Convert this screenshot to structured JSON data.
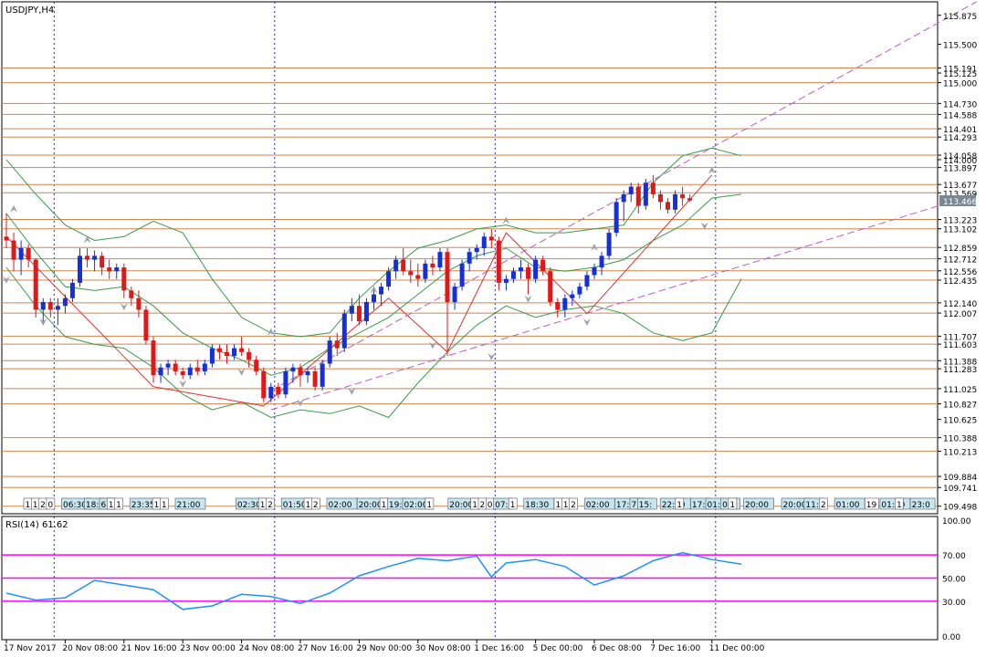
{
  "chart_data": {
    "type": "candlestick",
    "title": "USDJPY,H4",
    "symbol": "USDJPY",
    "timeframe": "H4",
    "colors": {
      "bull": "#1530d8",
      "bear": "#e01818",
      "level": "#d0854a",
      "bands": "#3a9a4a",
      "trendline": "#b85cc8",
      "zigzag": "#e03030",
      "rsi": "#1e90ff",
      "rsi_level": "#ff00ff",
      "grid_vline": "#1a2ad8",
      "current_price_bg": "#7a8896"
    },
    "price_axis": {
      "ylim": [
        109.4,
        116.05
      ],
      "labels": [
        "115.875",
        "115.500",
        "115.191",
        "115.125",
        "115.000",
        "114.730",
        "114.588",
        "114.401",
        "114.293",
        "114.058",
        "114.000",
        "113.897",
        "113.677",
        "113.569",
        "113.223",
        "113.102",
        "112.859",
        "112.712",
        "112.556",
        "112.435",
        "112.140",
        "112.007",
        "111.707",
        "111.603",
        "111.388",
        "111.283",
        "111.025",
        "110.827",
        "110.625",
        "110.388",
        "110.213",
        "109.884",
        "109.741",
        "109.498"
      ],
      "current_price": "113.466"
    },
    "horizontal_levels": [
      115.191,
      115.0,
      114.73,
      114.588,
      114.401,
      114.293,
      114.058,
      113.897,
      113.677,
      113.569,
      113.223,
      113.102,
      112.859,
      112.712,
      112.556,
      112.435,
      112.14,
      112.007,
      111.707,
      111.603,
      111.388,
      111.283,
      111.025,
      110.827,
      110.388,
      110.213,
      109.884,
      109.741,
      109.498
    ],
    "x_axis": {
      "labels": [
        "17 Nov 2017",
        "20 Nov 08:00",
        "21 Nov 16:00",
        "23 Nov 00:00",
        "24 Nov 08:00",
        "27 Nov 16:00",
        "29 Nov 00:00",
        "30 Nov 08:00",
        "1 Dec 16:00",
        "5 Dec 00:00",
        "6 Dec 08:00",
        "7 Dec 16:00",
        "11 Dec 00:00"
      ],
      "label_index": [
        0,
        8,
        16,
        24,
        32,
        40,
        48,
        56,
        64,
        72,
        80,
        88,
        96
      ]
    },
    "session_separators_index": [
      6.5,
      36.5,
      66.5,
      96.5
    ],
    "candles": [
      [
        113.0,
        113.3,
        112.85,
        112.95
      ],
      [
        112.95,
        113.05,
        112.55,
        112.7
      ],
      [
        112.7,
        112.95,
        112.5,
        112.85
      ],
      [
        112.85,
        112.9,
        112.6,
        112.7
      ],
      [
        112.7,
        112.72,
        111.95,
        112.05
      ],
      [
        112.05,
        112.2,
        111.9,
        112.15
      ],
      [
        112.15,
        112.2,
        111.95,
        112.05
      ],
      [
        112.05,
        112.2,
        111.85,
        112.1
      ],
      [
        112.1,
        112.25,
        112.0,
        112.2
      ],
      [
        112.2,
        112.45,
        112.15,
        112.4
      ],
      [
        112.4,
        112.85,
        112.35,
        112.75
      ],
      [
        112.75,
        112.85,
        112.6,
        112.7
      ],
      [
        112.7,
        112.82,
        112.55,
        112.75
      ],
      [
        112.75,
        112.8,
        112.5,
        112.6
      ],
      [
        112.6,
        112.7,
        112.45,
        112.55
      ],
      [
        112.55,
        112.65,
        112.45,
        112.6
      ],
      [
        112.6,
        112.65,
        112.2,
        112.3
      ],
      [
        112.3,
        112.35,
        112.1,
        112.2
      ],
      [
        112.2,
        112.3,
        111.95,
        112.05
      ],
      [
        112.05,
        112.1,
        111.6,
        111.65
      ],
      [
        111.65,
        111.7,
        111.1,
        111.2
      ],
      [
        111.2,
        111.35,
        111.1,
        111.3
      ],
      [
        111.3,
        111.4,
        111.2,
        111.35
      ],
      [
        111.35,
        111.4,
        111.2,
        111.25
      ],
      [
        111.25,
        111.3,
        111.15,
        111.2
      ],
      [
        111.2,
        111.35,
        111.15,
        111.3
      ],
      [
        111.3,
        111.4,
        111.2,
        111.25
      ],
      [
        111.25,
        111.4,
        111.2,
        111.35
      ],
      [
        111.35,
        111.6,
        111.3,
        111.55
      ],
      [
        111.55,
        111.6,
        111.4,
        111.5
      ],
      [
        111.5,
        111.6,
        111.35,
        111.45
      ],
      [
        111.45,
        111.6,
        111.4,
        111.55
      ],
      [
        111.55,
        111.7,
        111.45,
        111.5
      ],
      [
        111.5,
        111.55,
        111.3,
        111.4
      ],
      [
        111.4,
        111.45,
        111.2,
        111.25
      ],
      [
        111.25,
        111.3,
        110.85,
        110.9
      ],
      [
        110.9,
        111.1,
        110.85,
        111.05
      ],
      [
        111.05,
        111.1,
        110.9,
        110.95
      ],
      [
        110.95,
        111.3,
        110.9,
        111.25
      ],
      [
        111.25,
        111.35,
        111.1,
        111.3
      ],
      [
        111.3,
        111.35,
        111.05,
        111.2
      ],
      [
        111.2,
        111.3,
        111.1,
        111.25
      ],
      [
        111.25,
        111.3,
        111.0,
        111.05
      ],
      [
        111.05,
        111.4,
        111.0,
        111.35
      ],
      [
        111.35,
        111.7,
        111.3,
        111.65
      ],
      [
        111.65,
        111.75,
        111.45,
        111.55
      ],
      [
        111.55,
        112.05,
        111.5,
        112.0
      ],
      [
        112.0,
        112.2,
        111.9,
        112.1
      ],
      [
        112.1,
        112.25,
        111.85,
        111.9
      ],
      [
        111.9,
        112.2,
        111.85,
        112.15
      ],
      [
        112.15,
        112.3,
        112.05,
        112.25
      ],
      [
        112.25,
        112.4,
        112.1,
        112.35
      ],
      [
        112.35,
        112.6,
        112.3,
        112.55
      ],
      [
        112.55,
        112.75,
        112.45,
        112.7
      ],
      [
        112.7,
        112.85,
        112.5,
        112.55
      ],
      [
        112.55,
        112.7,
        112.4,
        112.5
      ],
      [
        112.5,
        112.65,
        112.35,
        112.45
      ],
      [
        112.45,
        112.7,
        112.4,
        112.65
      ],
      [
        112.65,
        112.75,
        112.5,
        112.6
      ],
      [
        112.6,
        112.85,
        112.55,
        112.8
      ],
      [
        112.8,
        112.85,
        111.45,
        112.15
      ],
      [
        112.15,
        112.4,
        112.05,
        112.35
      ],
      [
        112.35,
        112.7,
        112.3,
        112.65
      ],
      [
        112.65,
        112.85,
        112.55,
        112.8
      ],
      [
        112.8,
        112.9,
        112.7,
        112.85
      ],
      [
        112.85,
        113.05,
        112.75,
        113.0
      ],
      [
        113.0,
        113.1,
        112.85,
        112.95
      ],
      [
        112.95,
        113.0,
        112.3,
        112.4
      ],
      [
        112.4,
        112.5,
        112.3,
        112.45
      ],
      [
        112.45,
        112.6,
        112.4,
        112.55
      ],
      [
        112.55,
        112.7,
        112.45,
        112.6
      ],
      [
        112.6,
        112.65,
        112.25,
        112.45
      ],
      [
        112.45,
        112.75,
        112.4,
        112.7
      ],
      [
        112.7,
        112.75,
        112.5,
        112.55
      ],
      [
        112.55,
        112.6,
        112.1,
        112.15
      ],
      [
        112.15,
        112.2,
        111.95,
        112.05
      ],
      [
        112.05,
        112.25,
        111.95,
        112.2
      ],
      [
        112.2,
        112.3,
        112.1,
        112.25
      ],
      [
        112.25,
        112.4,
        112.2,
        112.35
      ],
      [
        112.35,
        112.55,
        112.3,
        112.5
      ],
      [
        112.5,
        112.65,
        112.45,
        112.6
      ],
      [
        112.6,
        112.8,
        112.5,
        112.75
      ],
      [
        112.75,
        113.1,
        112.7,
        113.05
      ],
      [
        113.05,
        113.5,
        113.0,
        113.45
      ],
      [
        113.45,
        113.6,
        113.2,
        113.55
      ],
      [
        113.55,
        113.7,
        113.45,
        113.65
      ],
      [
        113.65,
        113.7,
        113.3,
        113.4
      ],
      [
        113.4,
        113.75,
        113.35,
        113.7
      ],
      [
        113.7,
        113.8,
        113.5,
        113.55
      ],
      [
        113.55,
        113.6,
        113.35,
        113.45
      ],
      [
        113.45,
        113.5,
        113.3,
        113.35
      ],
      [
        113.35,
        113.6,
        113.3,
        113.55
      ],
      [
        113.55,
        113.65,
        113.4,
        113.5
      ],
      [
        113.5,
        113.55,
        113.45,
        113.47
      ]
    ],
    "candle_first_index": 0,
    "bollinger": {
      "upper": [
        [
          0,
          114.0
        ],
        [
          4,
          113.55
        ],
        [
          8,
          113.15
        ],
        [
          12,
          112.95
        ],
        [
          16,
          113.0
        ],
        [
          20,
          113.2
        ],
        [
          24,
          113.05
        ],
        [
          28,
          112.45
        ],
        [
          32,
          111.95
        ],
        [
          36,
          111.75
        ],
        [
          40,
          111.7
        ],
        [
          44,
          111.75
        ],
        [
          48,
          112.2
        ],
        [
          52,
          112.55
        ],
        [
          56,
          112.85
        ],
        [
          60,
          112.95
        ],
        [
          64,
          113.1
        ],
        [
          68,
          113.15
        ],
        [
          72,
          113.05
        ],
        [
          76,
          113.05
        ],
        [
          80,
          113.1
        ],
        [
          84,
          113.15
        ],
        [
          88,
          113.7
        ],
        [
          92,
          114.05
        ],
        [
          96,
          114.15
        ],
        [
          100,
          114.05
        ]
      ],
      "middle": [
        [
          0,
          113.3
        ],
        [
          4,
          112.8
        ],
        [
          8,
          112.35
        ],
        [
          12,
          112.3
        ],
        [
          16,
          112.35
        ],
        [
          20,
          112.1
        ],
        [
          24,
          111.75
        ],
        [
          28,
          111.55
        ],
        [
          32,
          111.4
        ],
        [
          36,
          111.2
        ],
        [
          40,
          111.3
        ],
        [
          44,
          111.55
        ],
        [
          48,
          111.75
        ],
        [
          52,
          111.95
        ],
        [
          56,
          112.25
        ],
        [
          60,
          112.55
        ],
        [
          64,
          112.75
        ],
        [
          68,
          112.85
        ],
        [
          72,
          112.6
        ],
        [
          76,
          112.55
        ],
        [
          80,
          112.6
        ],
        [
          84,
          112.7
        ],
        [
          88,
          112.95
        ],
        [
          92,
          113.15
        ],
        [
          96,
          113.5
        ],
        [
          100,
          113.55
        ]
      ],
      "lower": [
        [
          0,
          112.6
        ],
        [
          4,
          112.1
        ],
        [
          8,
          111.7
        ],
        [
          12,
          111.6
        ],
        [
          16,
          111.55
        ],
        [
          20,
          111.3
        ],
        [
          24,
          110.95
        ],
        [
          28,
          110.75
        ],
        [
          32,
          110.85
        ],
        [
          36,
          110.65
        ],
        [
          40,
          110.75
        ],
        [
          44,
          110.7
        ],
        [
          48,
          110.8
        ],
        [
          52,
          110.65
        ],
        [
          56,
          111.1
        ],
        [
          60,
          111.5
        ],
        [
          64,
          111.85
        ],
        [
          68,
          112.1
        ],
        [
          72,
          111.95
        ],
        [
          76,
          112.05
        ],
        [
          80,
          112.1
        ],
        [
          84,
          112.0
        ],
        [
          88,
          111.75
        ],
        [
          92,
          111.65
        ],
        [
          96,
          111.75
        ],
        [
          100,
          112.45
        ]
      ]
    },
    "trendlines": [
      {
        "from": [
          36,
          110.75
        ],
        "to": [
          132,
          113.55
        ]
      },
      {
        "from": [
          36,
          111.0
        ],
        "to": [
          132,
          116.05
        ]
      }
    ],
    "zigzag": [
      [
        0,
        113.0
      ],
      [
        20,
        111.05
      ],
      [
        35,
        110.8
      ],
      [
        52,
        112.2
      ],
      [
        60,
        111.5
      ],
      [
        68,
        113.05
      ],
      [
        79,
        112.0
      ],
      [
        96,
        113.8
      ]
    ],
    "fractals_up": [
      [
        1,
        113.35
      ],
      [
        11,
        112.95
      ],
      [
        36,
        111.75
      ],
      [
        50,
        112.3
      ],
      [
        68,
        113.2
      ],
      [
        80,
        112.85
      ],
      [
        96,
        113.85
      ]
    ],
    "fractals_down": [
      [
        0,
        112.45
      ],
      [
        5,
        111.9
      ],
      [
        16,
        112.1
      ],
      [
        24,
        111.1
      ],
      [
        32,
        111.25
      ],
      [
        40,
        110.85
      ],
      [
        47,
        111.0
      ],
      [
        58,
        111.6
      ],
      [
        66,
        111.45
      ],
      [
        71,
        112.2
      ],
      [
        79,
        111.9
      ],
      [
        95,
        113.15
      ]
    ],
    "rsi": {
      "label": "RSI(14) 61.62",
      "levels": [
        70,
        50,
        30
      ],
      "axis_labels": [
        "100.00",
        "70.00",
        "50.00",
        "30.00",
        "0.00"
      ],
      "values": [
        [
          0,
          37
        ],
        [
          4,
          31
        ],
        [
          8,
          33
        ],
        [
          12,
          48
        ],
        [
          16,
          44
        ],
        [
          20,
          40
        ],
        [
          24,
          23
        ],
        [
          28,
          26
        ],
        [
          32,
          36
        ],
        [
          36,
          34
        ],
        [
          40,
          28
        ],
        [
          44,
          37
        ],
        [
          48,
          52
        ],
        [
          52,
          60
        ],
        [
          56,
          67
        ],
        [
          60,
          65
        ],
        [
          64,
          69
        ],
        [
          66,
          51
        ],
        [
          68,
          63
        ],
        [
          72,
          66
        ],
        [
          76,
          60
        ],
        [
          80,
          44
        ],
        [
          84,
          52
        ],
        [
          88,
          65
        ],
        [
          92,
          72
        ],
        [
          96,
          66
        ],
        [
          100,
          62
        ]
      ]
    },
    "session_boxes": [
      {
        "text": "1",
        "i": 0
      },
      {
        "text": "1",
        "i": 1
      },
      {
        "text": "2",
        "i": 2
      },
      {
        "text": "0",
        "i": 3
      },
      {
        "text": "06:30",
        "i": 5
      },
      {
        "text": "18:30",
        "i": 8
      },
      {
        "text": "6:",
        "i": 10
      },
      {
        "text": "1",
        "i": 11
      },
      {
        "text": "1",
        "i": 12
      },
      {
        "text": "23:35",
        "i": 14
      },
      {
        "text": "1",
        "i": 17
      },
      {
        "text": "1",
        "i": 18
      },
      {
        "text": "21:00",
        "i": 20
      },
      {
        "text": "02:30",
        "i": 28
      },
      {
        "text": "1",
        "i": 31
      },
      {
        "text": "2",
        "i": 32
      },
      {
        "text": "01:50",
        "i": 34
      },
      {
        "text": "1",
        "i": 37
      },
      {
        "text": "2",
        "i": 38
      },
      {
        "text": "02:00",
        "i": 40
      },
      {
        "text": "20:00",
        "i": 44
      },
      {
        "text": "1",
        "i": 47
      },
      {
        "text": "19:",
        "i": 48
      },
      {
        "text": "02:00",
        "i": 50
      },
      {
        "text": "1",
        "i": 53
      },
      {
        "text": "20:00",
        "i": 56
      },
      {
        "text": "1",
        "i": 59
      },
      {
        "text": "2",
        "i": 60
      },
      {
        "text": "0",
        "i": 61
      },
      {
        "text": "07:",
        "i": 62
      },
      {
        "text": "1",
        "i": 64
      },
      {
        "text": "18:30",
        "i": 66
      },
      {
        "text": "1",
        "i": 70
      },
      {
        "text": "1",
        "i": 71
      },
      {
        "text": "2",
        "i": 72
      },
      {
        "text": "02:00",
        "i": 74
      },
      {
        "text": "17:00",
        "i": 78
      },
      {
        "text": "7:",
        "i": 80
      },
      {
        "text": "15:",
        "i": 81
      },
      {
        "text": "22:00",
        "i": 84
      },
      {
        "text": "1",
        "i": 86
      },
      {
        "text": "17:",
        "i": 88
      },
      {
        "text": "01:",
        "i": 90
      },
      {
        "text": "08:",
        "i": 92
      },
      {
        "text": "1",
        "i": 93
      },
      {
        "text": "20:00",
        "i": 95
      },
      {
        "text": "20:00",
        "i": 100
      },
      {
        "text": "11:",
        "i": 103
      },
      {
        "text": "2",
        "i": 105
      },
      {
        "text": "01:00",
        "i": 107
      },
      {
        "text": "19",
        "i": 111
      },
      {
        "text": "01:50",
        "i": 113
      },
      {
        "text": "1",
        "i": 115
      },
      {
        "text": "23:0",
        "i": 117
      }
    ]
  }
}
